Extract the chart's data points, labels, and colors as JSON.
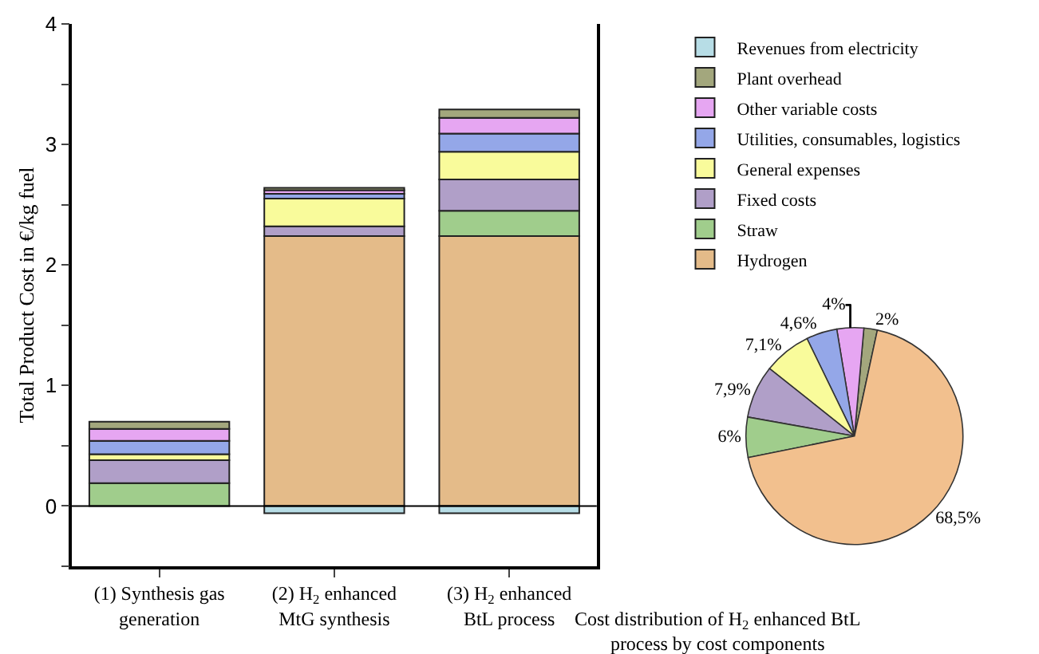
{
  "chart_data": [
    {
      "type": "bar",
      "stacked": true,
      "ylabel": "Total Product Cost in €/kg fuel",
      "categories": [
        "(1) Synthesis gas\ngeneration",
        "(2) H$_{2}$ enhanced\nMtG synthesis",
        "(3) H$_{2}$ enhanced\nBtL process"
      ],
      "series": [
        {
          "name": "Hydrogen",
          "color": "#e4bb89",
          "values": [
            null,
            2.24,
            2.24
          ]
        },
        {
          "name": "Straw",
          "color": "#a0cd8c",
          "values": [
            0.19,
            null,
            0.21
          ]
        },
        {
          "name": "Fixed costs",
          "color": "#b09fc8",
          "values": [
            0.19,
            0.08,
            0.26
          ]
        },
        {
          "name": "General expenses",
          "color": "#f9fb9b",
          "values": [
            0.05,
            0.23,
            0.23
          ]
        },
        {
          "name": "Utilities, consumables, logistics",
          "color": "#94a7e8",
          "values": [
            0.11,
            0.04,
            0.15
          ]
        },
        {
          "name": "Other variable costs",
          "color": "#e6a6f2",
          "values": [
            0.1,
            0.03,
            0.13
          ]
        },
        {
          "name": "Plant overhead",
          "color": "#a3a77d",
          "values": [
            0.06,
            0.02,
            0.07
          ]
        },
        {
          "name": "Revenues from electricity",
          "color": "#b7dde6",
          "values": [
            null,
            -0.06,
            -0.06
          ]
        }
      ],
      "ylim": [
        -0.5,
        4
      ],
      "yticks": [
        {
          "value": -0.5,
          "label": null
        },
        0,
        {
          "value": 0.5,
          "label": null
        },
        1,
        {
          "value": 1.5,
          "label": null
        },
        2,
        {
          "value": 2.5,
          "label": null
        },
        3,
        {
          "value": 3.5,
          "label": null
        },
        4
      ],
      "ref_lines": [
        {
          "axis": "y",
          "value": 0,
          "color": "#000000"
        }
      ],
      "legend": "top right"
    },
    {
      "type": "pie",
      "title": "Cost distribution of H$_{2}$ enhanced BtL\nprocess by cost components",
      "categories": [
        null,
        null,
        null,
        null,
        null,
        null,
        null
      ],
      "values": [
        2,
        4,
        4.6,
        7.1,
        7.9,
        6,
        68.5
      ],
      "colors": [
        "#a3a77d",
        "#e6a6f2",
        "#94a7e8",
        "#f9fb9b",
        "#b09fc8",
        "#a0cd8c",
        "#f2c08e"
      ],
      "value_labels": [
        "2%",
        "4%",
        "4,6%",
        "7,1%",
        "7,9%",
        "6%",
        "68,5%"
      ],
      "legend": false
    }
  ]
}
